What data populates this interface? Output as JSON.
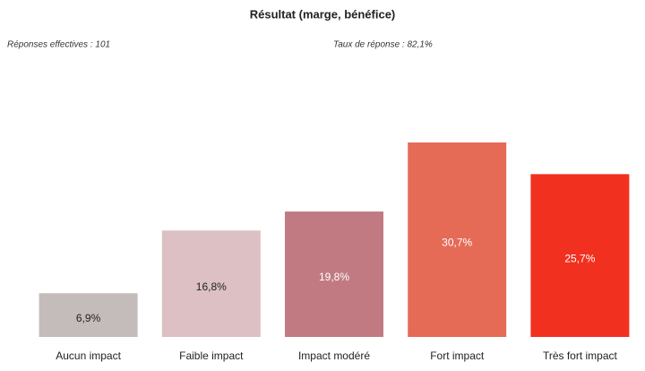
{
  "chart_data": {
    "type": "bar",
    "title": "Résultat (marge, bénéfice)",
    "annotations": [
      "Réponses effectives : 101",
      "Taux de réponse : 82,1%"
    ],
    "categories": [
      "Aucun impact",
      "Faible impact",
      "Impact modéré",
      "Fort impact",
      "Très fort impact"
    ],
    "values": [
      6.9,
      16.8,
      19.8,
      30.7,
      25.7
    ],
    "value_labels": [
      "6,9%",
      "16,8%",
      "19,8%",
      "30,7%",
      "25,7%"
    ],
    "colors": [
      "#c4bcbb",
      "#dcc0c3",
      "#c27a82",
      "#e56b57",
      "#f2301f"
    ],
    "value_label_colors": [
      "#222222",
      "#222222",
      "#ffffff",
      "#ffffff",
      "#ffffff"
    ]
  }
}
